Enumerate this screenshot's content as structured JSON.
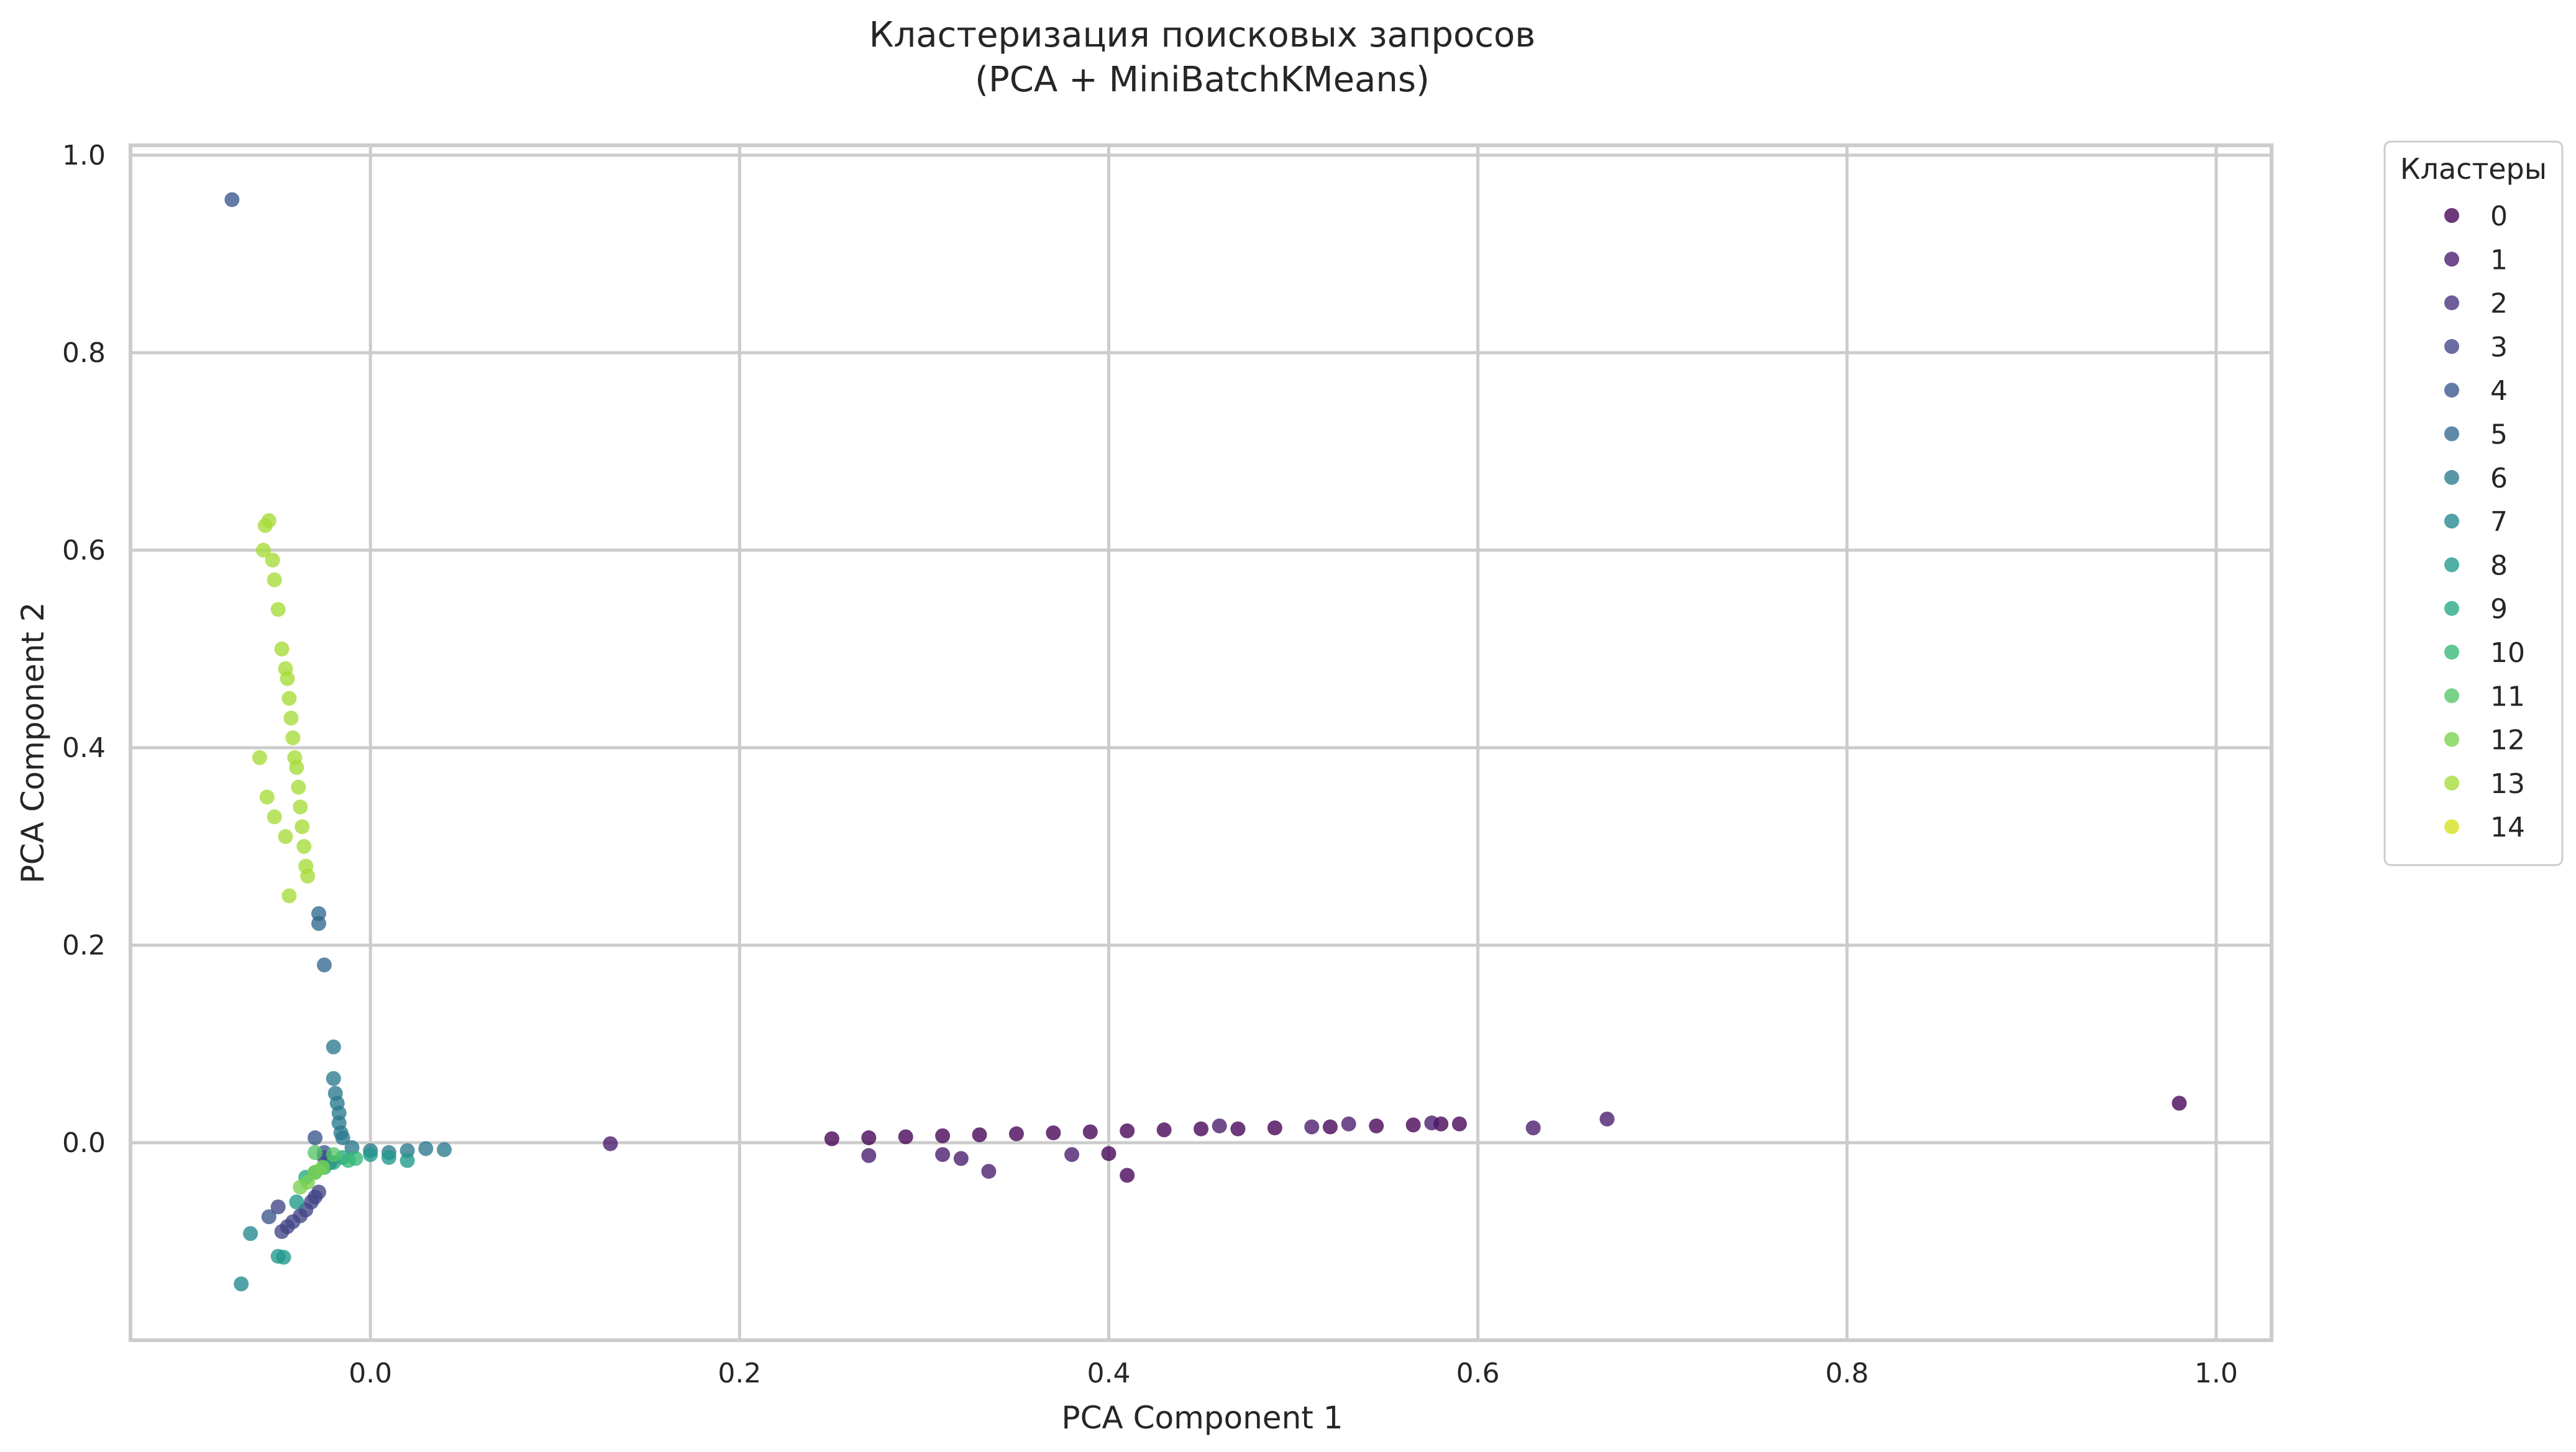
{
  "chart_data": {
    "type": "scatter",
    "title": "Кластеризация поисковых запросов",
    "subtitle": "(PCA + MiniBatchKMeans)",
    "xlabel": "PCA Component 1",
    "ylabel": "PCA Component 2",
    "xlim": [
      -0.13,
      1.03
    ],
    "ylim": [
      -0.2,
      1.01
    ],
    "xticks": [
      0.0,
      0.2,
      0.4,
      0.6,
      0.8,
      1.0
    ],
    "xtick_labels": [
      "0.0",
      "0.2",
      "0.4",
      "0.6",
      "0.8",
      "1.0"
    ],
    "yticks": [
      0.0,
      0.2,
      0.4,
      0.6,
      0.8,
      1.0
    ],
    "ytick_labels": [
      "0.0",
      "0.2",
      "0.4",
      "0.6",
      "0.8",
      "1.0"
    ],
    "grid": true,
    "legend": {
      "title": "Кластеры",
      "placement": "outside-right-top"
    },
    "colors": [
      "#440154",
      "#481a6c",
      "#472f7d",
      "#414487",
      "#39568c",
      "#31688e",
      "#2a788e",
      "#23888e",
      "#1f988b",
      "#22a884",
      "#35b779",
      "#54c568",
      "#7ad151",
      "#a5db36",
      "#d2e21b"
    ],
    "series": [
      {
        "name": "0",
        "x": [
          0.25,
          0.27,
          0.29,
          0.31,
          0.33,
          0.35,
          0.37,
          0.39,
          0.41,
          0.43,
          0.45,
          0.47,
          0.49,
          0.52,
          0.545,
          0.565,
          0.58,
          0.59,
          0.98,
          0.41,
          0.4
        ],
        "y": [
          0.004,
          0.005,
          0.006,
          0.007,
          0.008,
          0.009,
          0.01,
          0.011,
          0.012,
          0.013,
          0.014,
          0.014,
          0.015,
          0.016,
          0.017,
          0.018,
          0.019,
          0.019,
          0.04,
          -0.033,
          -0.011
        ]
      },
      {
        "name": "1",
        "x": [
          0.13,
          0.27,
          0.31,
          0.32,
          0.335,
          0.38,
          0.46,
          0.51,
          0.53,
          0.575,
          0.63,
          0.67
        ],
        "y": [
          -0.001,
          -0.013,
          -0.012,
          -0.016,
          -0.029,
          -0.012,
          0.017,
          0.016,
          0.019,
          0.02,
          0.015,
          0.024
        ]
      },
      {
        "name": "2",
        "x": [
          -0.025,
          -0.022
        ],
        "y": [
          -0.015,
          -0.02
        ]
      },
      {
        "name": "3",
        "x": [
          -0.048,
          -0.045,
          -0.042,
          -0.038,
          -0.035,
          -0.032,
          -0.03,
          -0.028,
          -0.05
        ],
        "y": [
          -0.09,
          -0.085,
          -0.08,
          -0.074,
          -0.068,
          -0.06,
          -0.055,
          -0.05,
          -0.065
        ]
      },
      {
        "name": "4",
        "x": [
          -0.075,
          -0.055,
          -0.03,
          -0.025
        ],
        "y": [
          0.955,
          -0.075,
          0.005,
          -0.01
        ]
      },
      {
        "name": "5",
        "x": [
          -0.028,
          -0.028,
          -0.025
        ],
        "y": [
          0.232,
          0.222,
          0.18
        ]
      },
      {
        "name": "6",
        "x": [
          -0.02,
          -0.02,
          -0.019,
          -0.018,
          -0.017,
          -0.017,
          -0.016,
          -0.015,
          -0.01,
          0.0,
          0.01,
          0.02,
          0.03,
          0.04
        ],
        "y": [
          0.097,
          0.065,
          0.05,
          0.04,
          0.03,
          0.02,
          0.01,
          0.005,
          -0.005,
          -0.008,
          -0.01,
          -0.008,
          -0.006,
          -0.007
        ]
      },
      {
        "name": "7",
        "x": [
          -0.07,
          -0.065
        ],
        "y": [
          -0.143,
          -0.092
        ]
      },
      {
        "name": "8",
        "x": [
          -0.05,
          -0.047,
          -0.04,
          0.0,
          0.01,
          0.02
        ],
        "y": [
          -0.115,
          -0.116,
          -0.06,
          -0.012,
          -0.015,
          -0.018
        ]
      },
      {
        "name": "9",
        "x": [
          -0.035,
          -0.03,
          -0.025,
          -0.02,
          -0.015
        ],
        "y": [
          -0.035,
          -0.03,
          -0.025,
          -0.02,
          -0.015
        ]
      },
      {
        "name": "10",
        "x": [
          -0.012,
          -0.008
        ],
        "y": [
          -0.018,
          -0.016
        ]
      },
      {
        "name": "11",
        "x": [
          -0.03,
          -0.02
        ],
        "y": [
          -0.01,
          -0.012
        ]
      },
      {
        "name": "12",
        "x": [
          -0.038,
          -0.034,
          -0.03,
          -0.026
        ],
        "y": [
          -0.045,
          -0.04,
          -0.03,
          -0.025
        ]
      },
      {
        "name": "13",
        "x": [
          -0.058,
          -0.057,
          -0.055,
          -0.053,
          -0.052,
          -0.05,
          -0.048,
          -0.046,
          -0.045,
          -0.044,
          -0.043,
          -0.042,
          -0.041,
          -0.04,
          -0.039,
          -0.038,
          -0.037,
          -0.036,
          -0.035,
          -0.034,
          -0.06,
          -0.056,
          -0.052,
          -0.046,
          -0.044
        ],
        "y": [
          0.6,
          0.625,
          0.63,
          0.59,
          0.57,
          0.54,
          0.5,
          0.48,
          0.47,
          0.45,
          0.43,
          0.41,
          0.39,
          0.38,
          0.36,
          0.34,
          0.32,
          0.3,
          0.28,
          0.27,
          0.39,
          0.35,
          0.33,
          0.31,
          0.25
        ]
      },
      {
        "name": "14",
        "x": [],
        "y": []
      }
    ]
  }
}
